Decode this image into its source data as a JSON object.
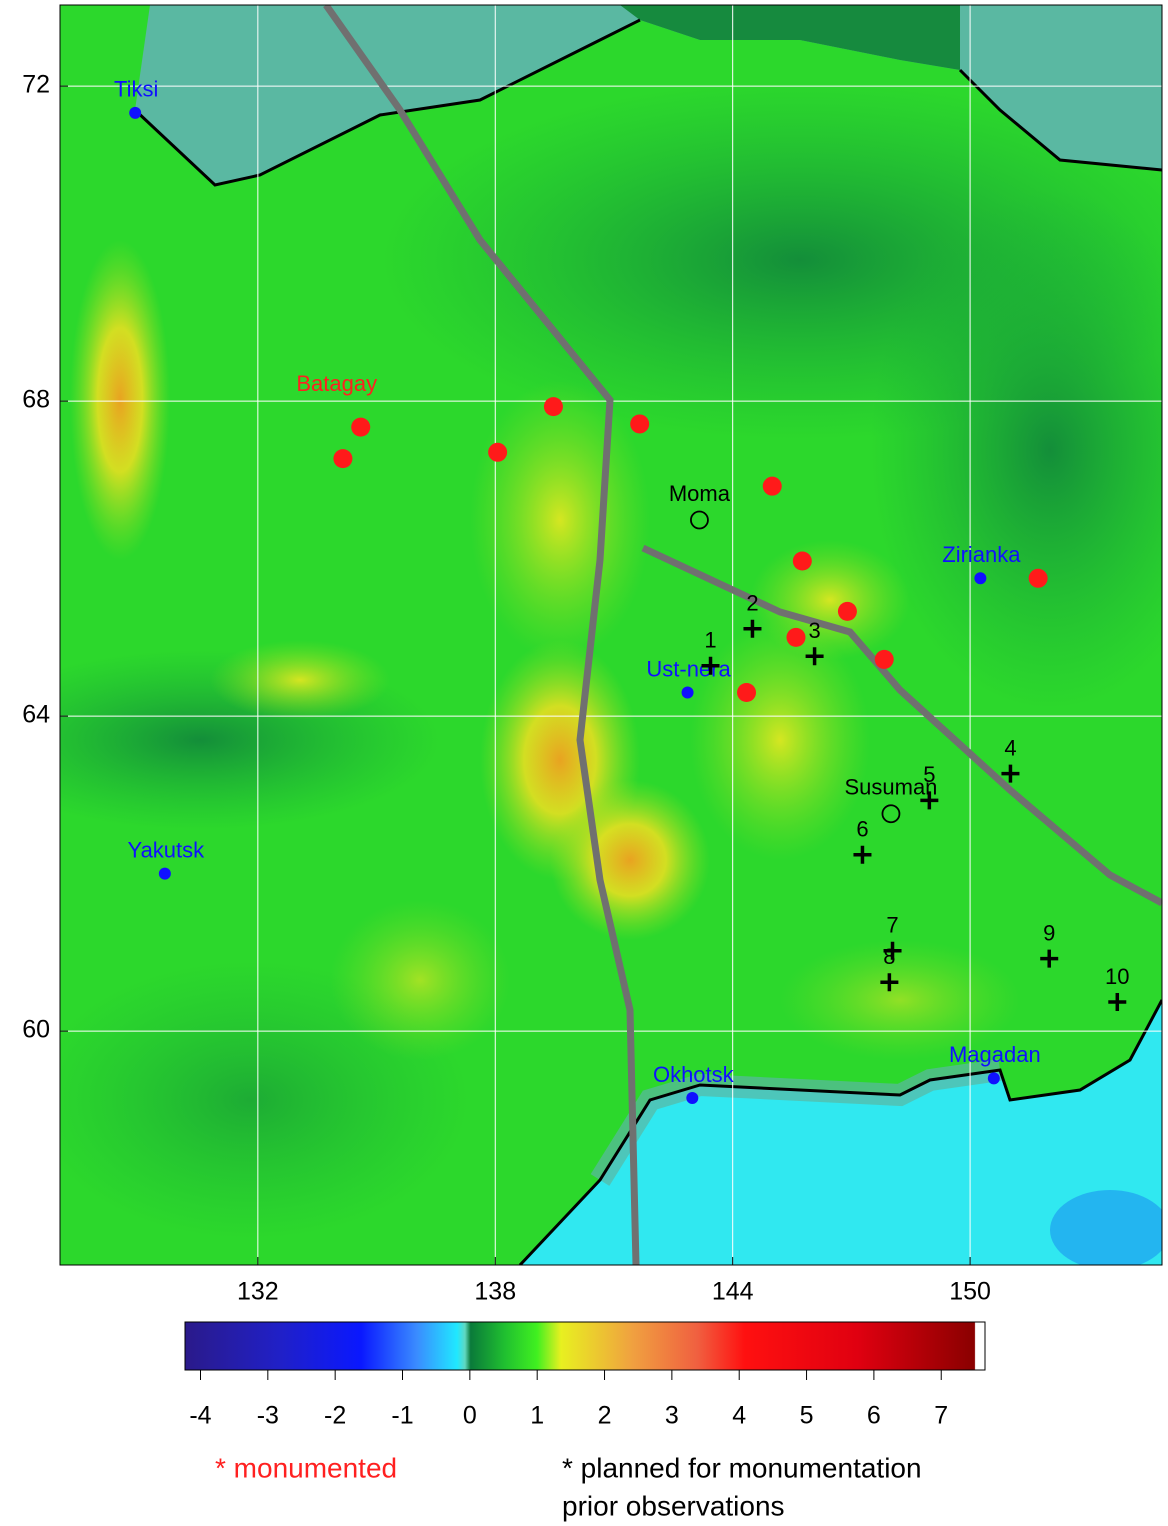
{
  "map": {
    "lon_lim": [
      127,
      154.85
    ],
    "lat_lim": [
      57.03,
      73.03
    ],
    "lon_ticks": [
      132,
      138,
      144,
      150
    ],
    "lat_ticks": [
      60,
      64,
      68,
      72
    ],
    "cities": [
      {
        "name": "Tiksi",
        "lon": 128.9,
        "lat": 71.66
      },
      {
        "name": "Yakutsk",
        "lon": 129.65,
        "lat": 62.0
      },
      {
        "name": "Ust-nera",
        "lon": 142.86,
        "lat": 64.3
      },
      {
        "name": "Zirianka",
        "lon": 150.26,
        "lat": 65.75
      },
      {
        "name": "Okhotsk",
        "lon": 142.98,
        "lat": 59.15
      },
      {
        "name": "Magadan",
        "lon": 150.6,
        "lat": 59.4
      }
    ],
    "settlements": [
      {
        "name": "Moma",
        "lon": 143.16,
        "lat": 66.49
      },
      {
        "name": "Susuman",
        "lon": 148.0,
        "lat": 62.76
      }
    ],
    "monumented": [
      {
        "lon": 134.15,
        "lat": 67.27
      },
      {
        "name": "Batagay",
        "lon": 134.6,
        "lat": 67.67
      },
      {
        "lon": 138.06,
        "lat": 67.35
      },
      {
        "lon": 139.47,
        "lat": 67.93
      },
      {
        "lon": 141.65,
        "lat": 67.71
      },
      {
        "lon": 145.0,
        "lat": 66.92
      },
      {
        "lon": 145.76,
        "lat": 65.97
      },
      {
        "lon": 146.9,
        "lat": 65.33
      },
      {
        "lon": 145.6,
        "lat": 65.0
      },
      {
        "lon": 147.83,
        "lat": 64.72
      },
      {
        "lon": 144.35,
        "lat": 64.3
      },
      {
        "lon": 151.72,
        "lat": 65.75
      }
    ],
    "planned": [
      {
        "label": "1",
        "lon": 143.44,
        "lat": 64.64
      },
      {
        "label": "2",
        "lon": 144.5,
        "lat": 65.11
      },
      {
        "label": "3",
        "lon": 146.07,
        "lat": 64.76
      },
      {
        "label": "4",
        "lon": 151.02,
        "lat": 63.27
      },
      {
        "label": "5",
        "lon": 148.97,
        "lat": 62.93
      },
      {
        "label": "6",
        "lon": 147.28,
        "lat": 62.24
      },
      {
        "label": "7",
        "lon": 148.04,
        "lat": 61.02
      },
      {
        "label": "8",
        "lon": 147.96,
        "lat": 60.62
      },
      {
        "label": "9",
        "lon": 152.0,
        "lat": 60.92
      },
      {
        "label": "10",
        "lon": 153.72,
        "lat": 60.37
      }
    ]
  },
  "colorbar": {
    "lim": [
      -4.23,
      7.65
    ],
    "ticks": [
      -4,
      -3,
      -2,
      -1,
      0,
      1,
      2,
      3,
      4,
      5,
      6,
      7
    ]
  },
  "legend": {
    "monumented": "* monumented",
    "planned": "* planned for monumentation",
    "prior": "prior observations"
  }
}
